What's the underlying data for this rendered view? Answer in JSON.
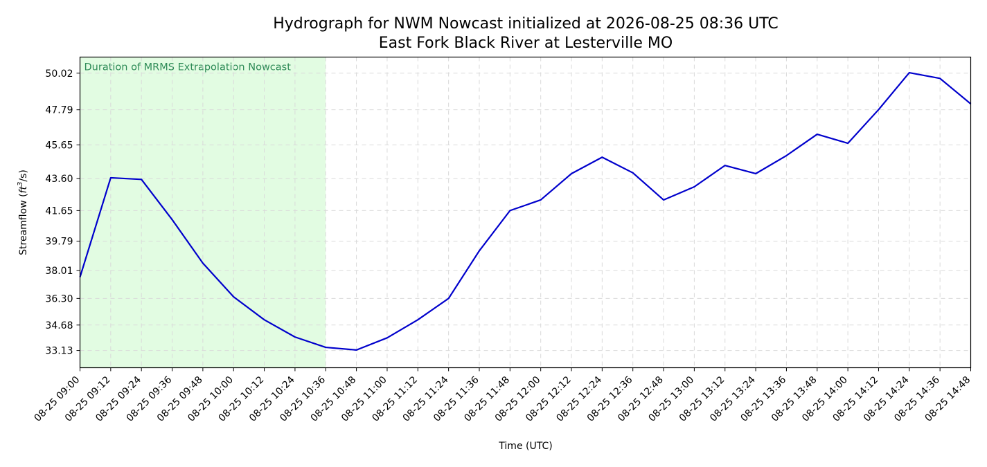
{
  "chart_data": {
    "type": "line",
    "title": "Hydrograph for NWM Nowcast initialized at 2026-08-25 08:36 UTC",
    "subtitle": "East Fork Black River at Lesterville MO",
    "xlabel": "Time (UTC)",
    "ylabel": "Streamflow (ft³/s)",
    "ylabel_parts": {
      "base": "Streamflow (",
      "unit": "ft",
      "exp": "3",
      "tail": "/s)"
    },
    "x": [
      "08-25 09:00",
      "08-25 09:12",
      "08-25 09:24",
      "08-25 09:36",
      "08-25 09:48",
      "08-25 10:00",
      "08-25 10:12",
      "08-25 10:24",
      "08-25 10:36",
      "08-25 10:48",
      "08-25 11:00",
      "08-25 11:12",
      "08-25 11:24",
      "08-25 11:36",
      "08-25 11:48",
      "08-25 12:00",
      "08-25 12:12",
      "08-25 12:24",
      "08-25 12:36",
      "08-25 12:48",
      "08-25 13:00",
      "08-25 13:12",
      "08-25 13:24",
      "08-25 13:36",
      "08-25 13:48",
      "08-25 14:00",
      "08-25 14:12",
      "08-25 14:24",
      "08-25 14:36",
      "08-25 14:48"
    ],
    "y_ticks": [
      33.13,
      34.68,
      36.3,
      38.01,
      39.79,
      41.65,
      43.6,
      45.65,
      47.79,
      50.02
    ],
    "y_tick_labels": [
      "33.13",
      "34.68",
      "36.30",
      "38.01",
      "39.79",
      "41.65",
      "43.60",
      "45.65",
      "47.79",
      "50.02"
    ],
    "ylim": [
      32.08,
      51.0
    ],
    "series": [
      {
        "values": [
          37.6,
          43.65,
          43.55,
          41.1,
          38.45,
          36.4,
          35.0,
          33.95,
          33.32,
          33.16,
          33.9,
          35.0,
          36.3,
          39.2,
          41.65,
          42.3,
          43.9,
          44.9,
          43.95,
          42.3,
          43.1,
          44.4,
          43.9,
          45.0,
          46.3,
          45.75,
          47.8,
          50.05,
          49.7,
          48.15
        ],
        "color": "#0000cc"
      }
    ],
    "shaded_region": {
      "x_start": "08-25 09:00",
      "x_end": "08-25 10:36",
      "label": "Duration of MRMS Extrapolation Nowcast",
      "fill_color": "#e2fce2",
      "label_color": "#2e8b57"
    },
    "grid": true,
    "legend": "none"
  }
}
